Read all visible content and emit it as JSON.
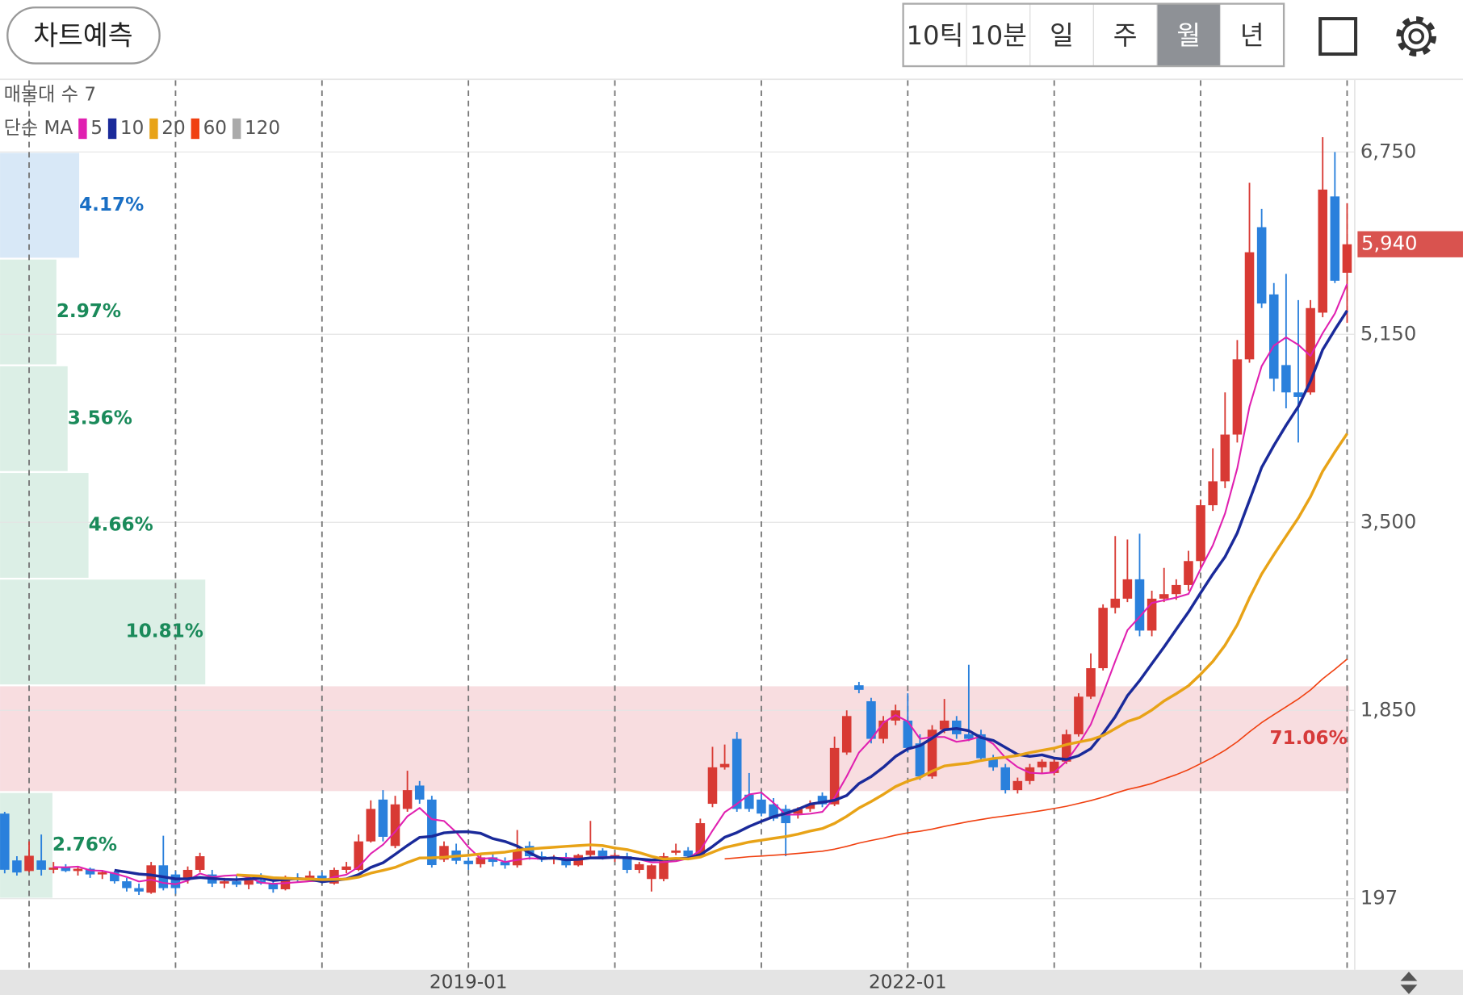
{
  "header": {
    "button": "차트예측",
    "periods": [
      "10틱",
      "10분",
      "일",
      "주",
      "월",
      "년"
    ],
    "selected_period": 4
  },
  "chart_data": {
    "type": "candlestick",
    "categories": [
      null,
      null,
      null,
      null,
      null,
      null,
      null,
      null,
      null,
      null,
      null,
      null,
      null,
      null,
      null,
      null,
      null,
      null,
      null,
      null,
      null,
      null,
      null,
      null,
      null,
      null,
      null,
      null,
      null,
      null,
      null,
      null,
      null,
      null,
      null,
      null,
      null,
      null,
      "2019-01",
      null,
      null,
      null,
      null,
      null,
      null,
      null,
      null,
      null,
      null,
      null,
      null,
      null,
      null,
      null,
      null,
      null,
      null,
      null,
      null,
      null,
      null,
      null,
      null,
      null,
      null,
      null,
      null,
      null,
      null,
      null,
      null,
      null,
      null,
      null,
      "2022-01",
      null,
      null,
      null,
      null,
      null,
      null,
      null,
      null,
      null,
      null,
      null,
      null,
      null,
      null,
      null,
      null,
      null,
      null,
      null,
      null,
      null,
      null,
      null,
      null,
      null,
      null,
      null,
      null,
      null,
      null,
      null,
      null,
      null,
      null,
      null,
      null
    ],
    "ohlc": [
      [
        944,
        960,
        420,
        451
      ],
      [
        533,
        570,
        400,
        427
      ],
      [
        440,
        700,
        430,
        574
      ],
      [
        533,
        760,
        400,
        451
      ],
      [
        451,
        520,
        420,
        470
      ],
      [
        470,
        500,
        430,
        440
      ],
      [
        440,
        480,
        400,
        460
      ],
      [
        460,
        470,
        380,
        410
      ],
      [
        410,
        450,
        370,
        430
      ],
      [
        430,
        440,
        330,
        350
      ],
      [
        350,
        380,
        260,
        290
      ],
      [
        290,
        330,
        230,
        260
      ],
      [
        250,
        520,
        240,
        490
      ],
      [
        490,
        750,
        270,
        290
      ],
      [
        410,
        440,
        240,
        290
      ],
      [
        370,
        480,
        330,
        450
      ],
      [
        450,
        600,
        430,
        570
      ],
      [
        410,
        450,
        300,
        330
      ],
      [
        330,
        380,
        290,
        350
      ],
      [
        350,
        400,
        300,
        320
      ],
      [
        320,
        380,
        280,
        360
      ],
      [
        360,
        420,
        320,
        330
      ],
      [
        330,
        370,
        250,
        280
      ],
      [
        280,
        400,
        270,
        380
      ],
      [
        380,
        420,
        340,
        360
      ],
      [
        360,
        440,
        350,
        400
      ],
      [
        400,
        430,
        330,
        350
      ],
      [
        330,
        470,
        320,
        450
      ],
      [
        450,
        520,
        420,
        480
      ],
      [
        450,
        760,
        440,
        700
      ],
      [
        700,
        1060,
        690,
        985
      ],
      [
        1067,
        1150,
        700,
        740
      ],
      [
        660,
        1100,
        640,
        1025
      ],
      [
        985,
        1320,
        960,
        1150
      ],
      [
        1190,
        1230,
        1030,
        1067
      ],
      [
        1067,
        1100,
        470,
        492
      ],
      [
        540,
        700,
        520,
        660
      ],
      [
        620,
        680,
        500,
        530
      ],
      [
        530,
        560,
        450,
        500
      ],
      [
        500,
        580,
        470,
        560
      ],
      [
        560,
        600,
        480,
        520
      ],
      [
        520,
        560,
        460,
        490
      ],
      [
        490,
        800,
        470,
        620
      ],
      [
        660,
        700,
        540,
        570
      ],
      [
        570,
        610,
        520,
        540
      ],
      [
        540,
        580,
        500,
        560
      ],
      [
        560,
        600,
        470,
        490
      ],
      [
        490,
        590,
        480,
        580
      ],
      [
        580,
        880,
        560,
        620
      ],
      [
        620,
        640,
        540,
        560
      ],
      [
        560,
        600,
        520,
        580
      ],
      [
        570,
        600,
        420,
        450
      ],
      [
        450,
        520,
        420,
        500
      ],
      [
        370,
        500,
        260,
        490
      ],
      [
        370,
        600,
        350,
        570
      ],
      [
        600,
        680,
        580,
        620
      ],
      [
        620,
        650,
        540,
        570
      ],
      [
        570,
        900,
        560,
        860
      ],
      [
        1030,
        1530,
        1000,
        1350
      ],
      [
        1350,
        1550,
        1330,
        1380
      ],
      [
        1600,
        1660,
        960,
        985
      ],
      [
        1110,
        1300,
        960,
        985
      ],
      [
        1067,
        1120,
        920,
        944
      ],
      [
        1025,
        1080,
        880,
        900
      ],
      [
        985,
        1020,
        570,
        860
      ],
      [
        944,
        1000,
        900,
        985
      ],
      [
        985,
        1060,
        960,
        1025
      ],
      [
        1100,
        1130,
        1000,
        1025
      ],
      [
        1025,
        1620,
        1010,
        1520
      ],
      [
        1480,
        1850,
        1460,
        1800
      ],
      [
        2070,
        2100,
        2000,
        2030
      ],
      [
        1930,
        1960,
        1560,
        1600
      ],
      [
        1600,
        1800,
        1560,
        1760
      ],
      [
        1760,
        1900,
        1720,
        1850
      ],
      [
        1760,
        2000,
        1480,
        1520
      ],
      [
        1560,
        1640,
        1240,
        1270
      ],
      [
        1270,
        1720,
        1250,
        1680
      ],
      [
        1680,
        1950,
        1650,
        1760
      ],
      [
        1760,
        1800,
        1600,
        1640
      ],
      [
        1640,
        2250,
        1580,
        1600
      ],
      [
        1640,
        1680,
        1400,
        1430
      ],
      [
        1430,
        1460,
        1320,
        1350
      ],
      [
        1350,
        1380,
        1120,
        1150
      ],
      [
        1150,
        1260,
        1120,
        1230
      ],
      [
        1230,
        1380,
        1200,
        1350
      ],
      [
        1350,
        1420,
        1300,
        1400
      ],
      [
        1300,
        1420,
        1280,
        1400
      ],
      [
        1400,
        1680,
        1380,
        1640
      ],
      [
        1640,
        2000,
        1620,
        1970
      ],
      [
        1970,
        2350,
        1950,
        2220
      ],
      [
        2220,
        2780,
        2200,
        2750
      ],
      [
        2750,
        3380,
        2700,
        2830
      ],
      [
        2830,
        3350,
        2800,
        3000
      ],
      [
        3000,
        3400,
        2500,
        2550
      ],
      [
        2550,
        2900,
        2500,
        2830
      ],
      [
        2830,
        3100,
        2800,
        2870
      ],
      [
        2870,
        3000,
        2820,
        2950
      ],
      [
        2950,
        3250,
        2900,
        3160
      ],
      [
        3160,
        3700,
        3100,
        3650
      ],
      [
        3650,
        4150,
        3600,
        3860
      ],
      [
        3860,
        4640,
        3800,
        4270
      ],
      [
        4270,
        5100,
        4200,
        4930
      ],
      [
        4930,
        6480,
        4900,
        5870
      ],
      [
        6090,
        6250,
        5380,
        5420
      ],
      [
        5500,
        5600,
        4650,
        4760
      ],
      [
        4880,
        5680,
        4500,
        4640
      ],
      [
        4640,
        5450,
        4200,
        4600
      ],
      [
        4640,
        5450,
        4620,
        5380
      ],
      [
        5340,
        6880,
        5300,
        6420
      ],
      [
        6360,
        6750,
        5600,
        5620
      ],
      [
        5690,
        6300,
        5250,
        5940
      ]
    ],
    "up_color": "#d83a34",
    "down_color": "#2a80dc",
    "ylim": [
      -427,
      7388
    ],
    "yticks": [
      {
        "value": 6750,
        "label": "6,750"
      },
      {
        "value": 5150,
        "label": "5,150"
      },
      {
        "value": 3500,
        "label": "3,500"
      },
      {
        "value": 1850,
        "label": "1,850"
      },
      197
    ],
    "grid": true,
    "current_price": {
      "value": 5940,
      "label": "5,940",
      "color": "#d9534f"
    },
    "profile": {
      "title": "매물대 수 7",
      "values": [
        4.17,
        2.97,
        3.56,
        4.66,
        10.81,
        71.06,
        2.76
      ],
      "value_labels": [
        "4.17%",
        "2.97%",
        "3.56%",
        "4.66%",
        "10.81%",
        "71.06%",
        "2.76%"
      ]
    },
    "ma": {
      "title": "단순 MA",
      "series": [
        {
          "name": "5",
          "color": "#e020b0"
        },
        {
          "name": "10",
          "color": "#1a2a9a"
        },
        {
          "name": "20",
          "color": "#e8a317"
        },
        {
          "name": "60",
          "color": "#f04010"
        },
        {
          "name": "120",
          "color": "#aaaaaa"
        }
      ]
    }
  }
}
